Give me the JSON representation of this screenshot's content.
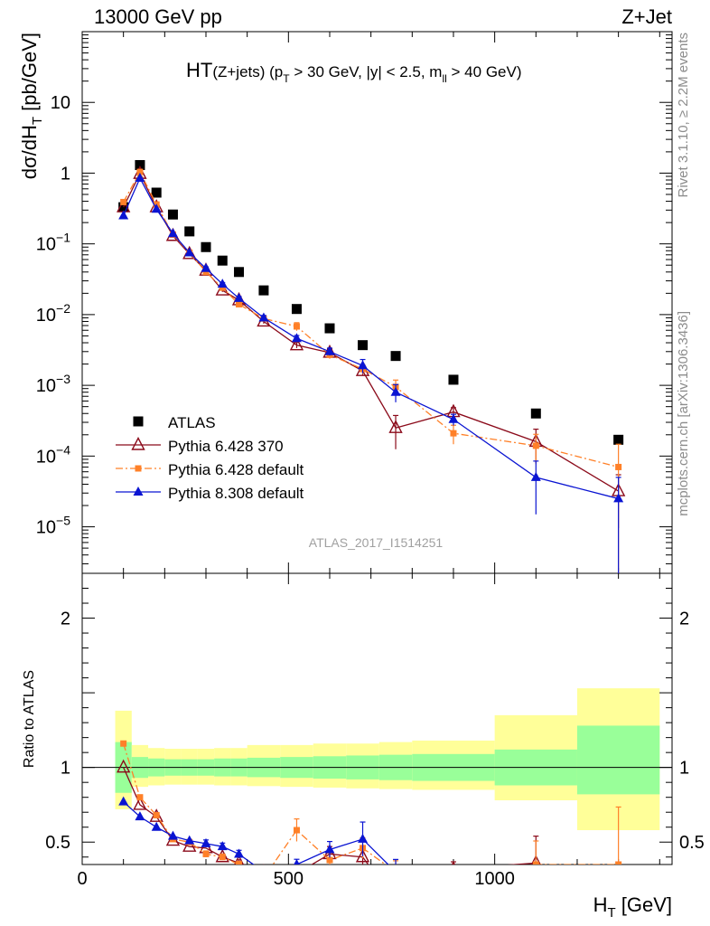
{
  "header": {
    "left": "13000 GeV pp",
    "right": "Z+Jet"
  },
  "side_labels": {
    "rivet": "Rivet 3.1.10, ≥ 2.2M events",
    "mcplots": "mcplots.cern.ch [arXiv:1306.3436]"
  },
  "chart_data": {
    "type": "scatter",
    "title": "HT(Z+jets) (p_T > 30 GeV, |y| < 2.5, m_ll > 40 GeV)",
    "analysis_id": "ATLAS_2017_I1514251",
    "xlabel": "H_T [GeV]",
    "ylabel": "dσ/dH_T [pb/GeV]",
    "ratio_ylabel": "Ratio to ATLAS",
    "xlim": [
      0,
      1430
    ],
    "ylim": [
      2.2e-06,
      100
    ],
    "yscale": "log",
    "ratio_ylim": [
      0.35,
      2.3
    ],
    "legend_position": "lower-left",
    "colors": {
      "atlas": "#000000",
      "py6_370": "#8b0a1a",
      "py6_def": "#ff8028",
      "py8_def": "#0a14d2",
      "band_inner": "#99ff99",
      "band_outer": "#ffff99"
    },
    "bins": [
      [
        80,
        120
      ],
      [
        120,
        160
      ],
      [
        160,
        200
      ],
      [
        200,
        240
      ],
      [
        240,
        280
      ],
      [
        280,
        320
      ],
      [
        320,
        360
      ],
      [
        360,
        400
      ],
      [
        400,
        480
      ],
      [
        480,
        560
      ],
      [
        560,
        640
      ],
      [
        640,
        720
      ],
      [
        720,
        800
      ],
      [
        800,
        1000
      ],
      [
        1000,
        1200
      ],
      [
        1200,
        1400
      ]
    ],
    "x": [
      100,
      140,
      180,
      220,
      260,
      300,
      340,
      380,
      440,
      520,
      600,
      680,
      760,
      900,
      1100,
      1300
    ],
    "atlas": [
      0.33,
      1.3,
      0.53,
      0.26,
      0.15,
      0.09,
      0.058,
      0.04,
      0.022,
      0.012,
      0.0064,
      0.0037,
      0.0026,
      0.0012,
      0.0004,
      0.00017
    ],
    "band_stat": [
      [
        0.83,
        1.17
      ],
      [
        0.93,
        1.07
      ],
      [
        0.94,
        1.06
      ],
      [
        0.945,
        1.055
      ],
      [
        0.945,
        1.055
      ],
      [
        0.945,
        1.055
      ],
      [
        0.94,
        1.06
      ],
      [
        0.94,
        1.06
      ],
      [
        0.935,
        1.065
      ],
      [
        0.93,
        1.07
      ],
      [
        0.925,
        1.075
      ],
      [
        0.92,
        1.08
      ],
      [
        0.915,
        1.085
      ],
      [
        0.91,
        1.09
      ],
      [
        0.88,
        1.12
      ],
      [
        0.82,
        1.28
      ]
    ],
    "band_total": [
      [
        0.72,
        1.38
      ],
      [
        0.87,
        1.15
      ],
      [
        0.88,
        1.13
      ],
      [
        0.885,
        1.125
      ],
      [
        0.885,
        1.125
      ],
      [
        0.885,
        1.125
      ],
      [
        0.88,
        1.13
      ],
      [
        0.88,
        1.13
      ],
      [
        0.875,
        1.15
      ],
      [
        0.87,
        1.15
      ],
      [
        0.865,
        1.16
      ],
      [
        0.86,
        1.16
      ],
      [
        0.855,
        1.17
      ],
      [
        0.85,
        1.18
      ],
      [
        0.78,
        1.35
      ],
      [
        0.58,
        1.53
      ]
    ],
    "series": [
      {
        "name": "ATLAS",
        "key": "atlas",
        "values": [
          0.33,
          1.3,
          0.53,
          0.26,
          0.15,
          0.09,
          0.058,
          0.04,
          0.022,
          0.012,
          0.0064,
          0.0037,
          0.0026,
          0.0012,
          0.0004,
          0.00017
        ],
        "ratio": [
          1,
          1,
          1,
          1,
          1,
          1,
          1,
          1,
          1,
          1,
          1,
          1,
          1,
          1,
          1,
          1
        ]
      },
      {
        "name": "Pythia 6.428 370",
        "key": "py6_370",
        "values": [
          0.33,
          0.98,
          0.33,
          0.13,
          0.072,
          0.042,
          0.022,
          0.016,
          0.008,
          0.0037,
          0.0029,
          0.0016,
          0.00025,
          0.00042,
          0.00016,
          3.2e-05
        ],
        "ratio": [
          1.0,
          0.75,
          0.67,
          0.51,
          0.47,
          0.46,
          0.4,
          0.36,
          0.3,
          0.29,
          0.42,
          0.4,
          0.1,
          0.32,
          0.36,
          0.19
        ],
        "yerr_rel": [
          0.02,
          0.02,
          0.02,
          0.03,
          0.04,
          0.04,
          0.05,
          0.06,
          0.07,
          0.09,
          0.12,
          0.13,
          0.5,
          0.15,
          0.5,
          0.7
        ],
        "marker": "triangle-open",
        "line": "solid"
      },
      {
        "name": "Pythia 6.428 default",
        "key": "py6_def",
        "values": [
          0.39,
          1.04,
          0.36,
          0.135,
          0.075,
          0.04,
          0.024,
          0.014,
          0.0088,
          0.0068,
          0.0027,
          0.0017,
          0.00095,
          0.00021,
          0.00014,
          7e-05
        ],
        "ratio": [
          1.16,
          0.8,
          0.68,
          0.52,
          0.5,
          0.42,
          0.4,
          0.35,
          0.26,
          0.58,
          0.38,
          0.46,
          0.3,
          0.17,
          0.35,
          0.35
        ],
        "yerr_rel": [
          0.02,
          0.02,
          0.02,
          0.03,
          0.04,
          0.05,
          0.05,
          0.06,
          0.08,
          0.13,
          0.12,
          0.15,
          0.25,
          0.3,
          0.45,
          1.1
        ],
        "marker": "square",
        "line": "dashdot"
      },
      {
        "name": "Pythia 8.308 default",
        "key": "py8_def",
        "values": [
          0.25,
          0.85,
          0.31,
          0.14,
          0.075,
          0.045,
          0.027,
          0.017,
          0.009,
          0.0046,
          0.003,
          0.0019,
          0.0008,
          0.00033,
          5e-05,
          2.5e-05
        ],
        "ratio": [
          0.77,
          0.67,
          0.6,
          0.54,
          0.51,
          0.49,
          0.47,
          0.42,
          0.3,
          0.35,
          0.45,
          0.52,
          0.3,
          0.27,
          0.13,
          0.15
        ],
        "yerr_rel": [
          0.02,
          0.02,
          0.02,
          0.03,
          0.04,
          0.05,
          0.05,
          0.06,
          0.08,
          0.1,
          0.12,
          0.22,
          0.28,
          0.18,
          0.7,
          1.0
        ],
        "marker": "triangle-filled",
        "line": "solid"
      }
    ],
    "x_ticks": [
      0,
      500,
      1000
    ],
    "y_ticks": [
      {
        "value": 10,
        "label": "10"
      },
      {
        "value": 1,
        "label": "1"
      },
      {
        "value": 0.1,
        "label": "10^-1"
      },
      {
        "value": 0.01,
        "label": "10^-2"
      },
      {
        "value": 0.001,
        "label": "10^-3"
      },
      {
        "value": 0.0001,
        "label": "10^-4"
      },
      {
        "value": 1e-05,
        "label": "10^-5"
      }
    ],
    "ratio_y_ticks": [
      0.5,
      1,
      2
    ]
  }
}
